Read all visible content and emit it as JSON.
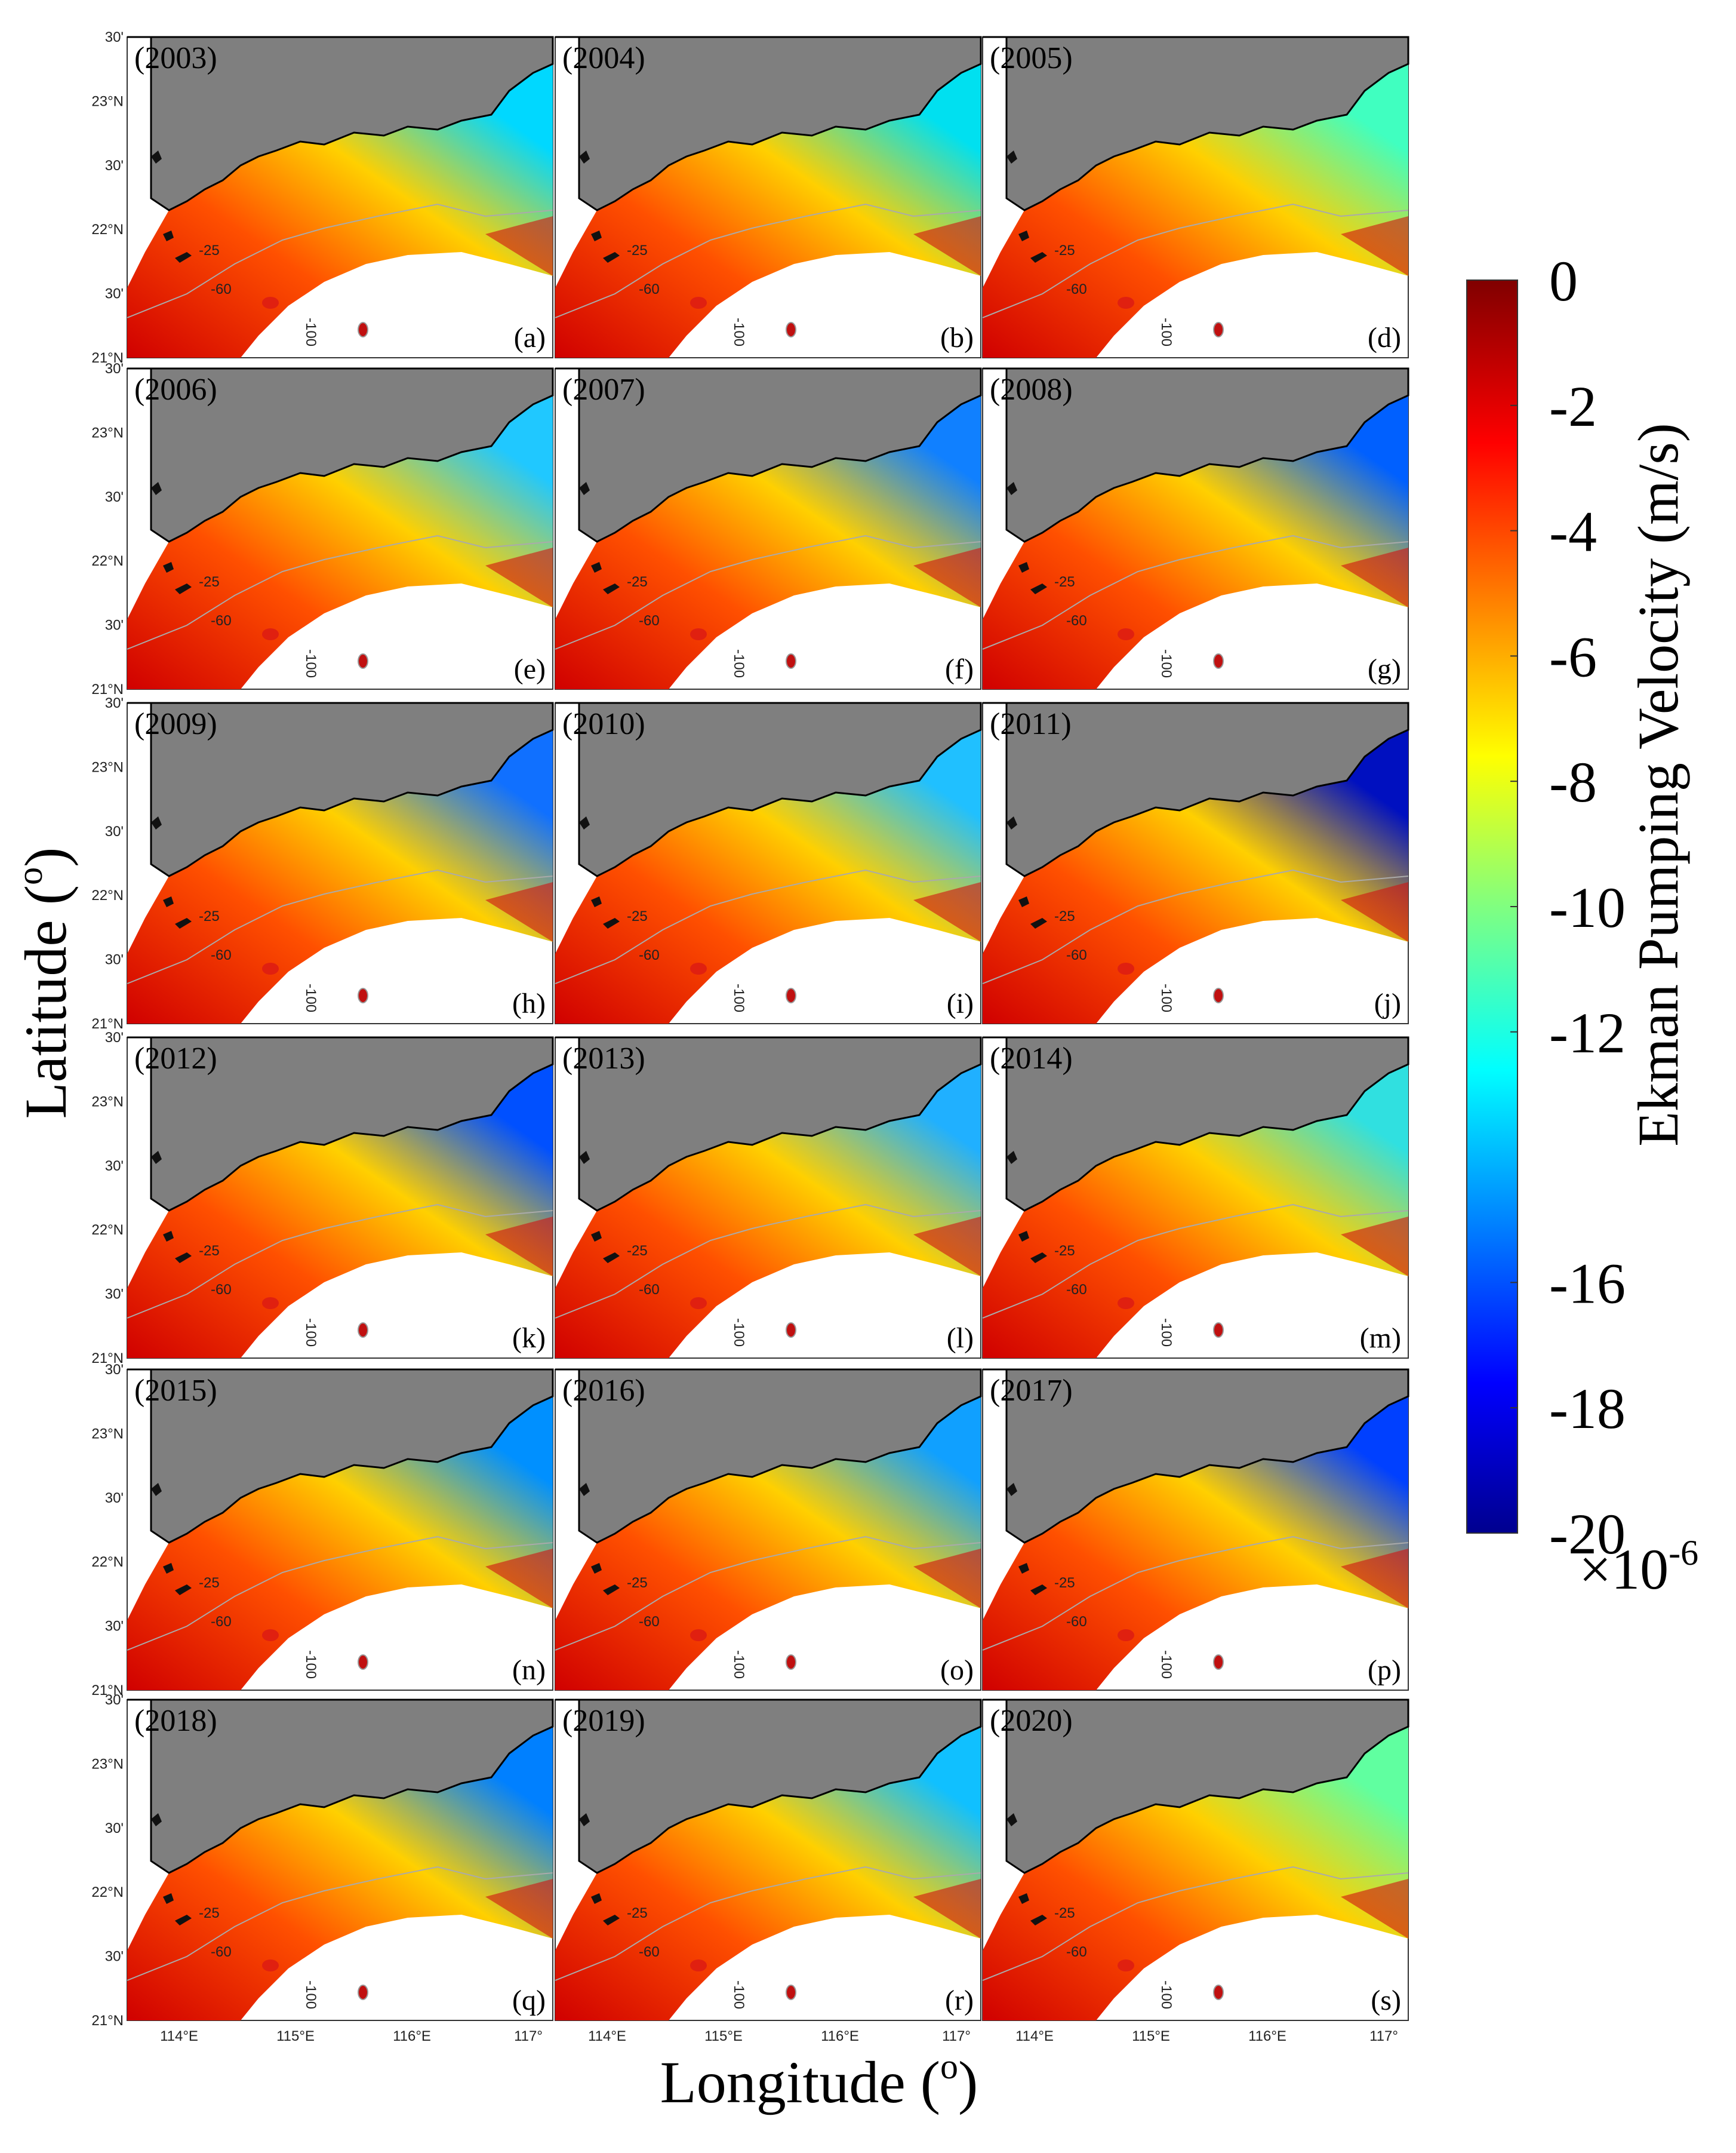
{
  "panels": [
    {
      "year": "(2003)",
      "letter": "(a)"
    },
    {
      "year": "(2004)",
      "letter": "(b)"
    },
    {
      "year": "(2005)",
      "letter": "(d)"
    },
    {
      "year": "(2006)",
      "letter": "(e)"
    },
    {
      "year": "(2007)",
      "letter": "(f)"
    },
    {
      "year": "(2008)",
      "letter": "(g)"
    },
    {
      "year": "(2009)",
      "letter": "(h)"
    },
    {
      "year": "(2010)",
      "letter": "(i)"
    },
    {
      "year": "(2011)",
      "letter": "(j)"
    },
    {
      "year": "(2012)",
      "letter": "(k)"
    },
    {
      "year": "(2013)",
      "letter": "(l)"
    },
    {
      "year": "(2014)",
      "letter": "(m)"
    },
    {
      "year": "(2015)",
      "letter": "(n)"
    },
    {
      "year": "(2016)",
      "letter": "(o)"
    },
    {
      "year": "(2017)",
      "letter": "(p)"
    },
    {
      "year": "(2018)",
      "letter": "(q)"
    },
    {
      "year": "(2019)",
      "letter": "(r)"
    },
    {
      "year": "(2020)",
      "letter": "(s)"
    }
  ],
  "map": {
    "lat_labels": [
      "30'",
      "23°N",
      "30'",
      "22°N",
      "30'",
      "21°N"
    ],
    "lon_labels": [
      "114°E",
      "115°E",
      "116°E",
      "117°"
    ],
    "contour_labels": [
      "-25",
      "-60",
      "-100"
    ]
  },
  "axes": {
    "x_label": [
      "Longitude (",
      "o",
      ")"
    ],
    "y_label": [
      "Latitude (",
      "o",
      ")"
    ]
  },
  "colorbar": {
    "label": "Ekman Pumping Velocity (m/s)",
    "lim": [
      -20,
      0
    ],
    "ticks": [
      0,
      -2,
      -4,
      -6,
      -8,
      -10,
      -12,
      -16,
      -18,
      -20
    ],
    "multiplier": "×10",
    "exponent": "-6"
  }
}
